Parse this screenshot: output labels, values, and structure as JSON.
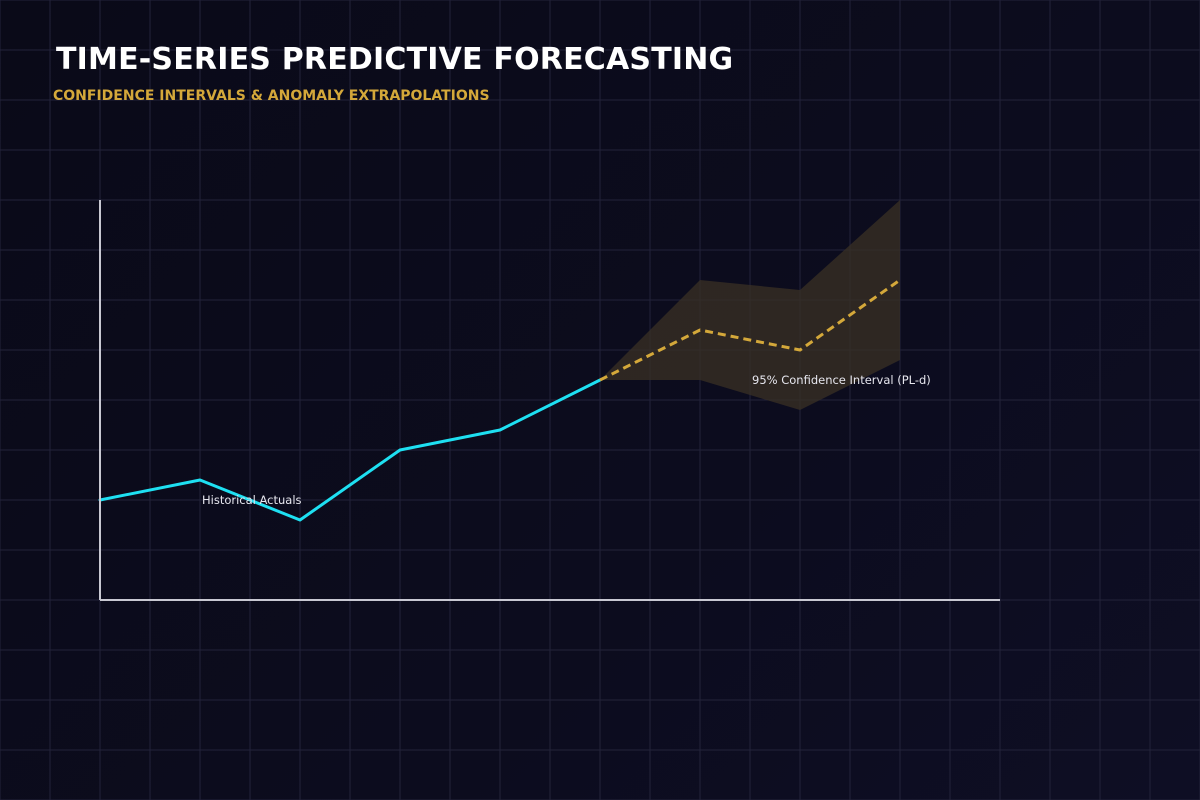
{
  "header": {
    "title": "TIME-SERIES PREDICTIVE FORECASTING",
    "subtitle": "CONFIDENCE INTERVALS & ANOMALY EXTRAPOLATIONS"
  },
  "colors": {
    "background": "#0a0a16",
    "grid": "#23233a",
    "axis": "#c8c8d2",
    "historical": "#1ee0f2",
    "forecast": "#d4a83a",
    "band": "#3a3024",
    "title": "#ffffff",
    "subtitle": "#d4a83a",
    "annotation": "#e6e6ee"
  },
  "chart_data": {
    "type": "line",
    "title": "TIME-SERIES PREDICTIVE FORECASTING",
    "subtitle": "CONFIDENCE INTERVALS & ANOMALY EXTRAPOLATIONS",
    "xlabel": "",
    "ylabel": "",
    "xlim": [
      0,
      9
    ],
    "ylim": [
      0,
      8
    ],
    "grid": true,
    "legend": "none",
    "series": [
      {
        "key": "historical",
        "style": "solid",
        "x": [
          0,
          1,
          2,
          3,
          4,
          5
        ],
        "y": [
          2.0,
          2.4,
          1.6,
          3.0,
          3.4,
          4.4
        ]
      },
      {
        "key": "forecast",
        "style": "dashed",
        "x": [
          5,
          6,
          7,
          8
        ],
        "y": [
          4.4,
          5.4,
          5.0,
          6.4
        ]
      }
    ],
    "confidence_band": {
      "x": [
        5,
        6,
        7,
        8
      ],
      "lower": [
        4.4,
        4.4,
        3.8,
        4.8
      ],
      "upper": [
        4.4,
        6.4,
        6.2,
        8.0
      ]
    },
    "annotations": [
      {
        "key": "historical-label",
        "text": "Historical Actuals",
        "x": 1.0,
        "y": 1.0
      },
      {
        "key": "band-label",
        "text": "95% Confidence Interval (PL-d)",
        "x": 6.5,
        "y": 3.4
      }
    ]
  }
}
